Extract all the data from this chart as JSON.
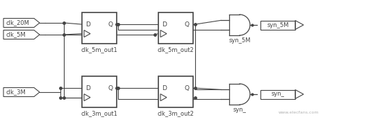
{
  "bg_color": "#ffffff",
  "line_color": "#444444",
  "font_size": 6.5,
  "top_inp1_label": "clk_20M",
  "top_inp2_label": "clk_5M",
  "bot_inp1_label": "clk_3M",
  "dff_top1_label": "clk_5m_out1",
  "dff_top2_label": "clk_5m_out2",
  "dff_bot1_label": "clk_3m_out1",
  "dff_bot2_label": "clk_3m_out2",
  "and_top_label": "syn_5M",
  "and_bot_label": "syn_",
  "out_top_label": "syn_5M",
  "out_bot_label": "syn_",
  "watermark": "www.elecfans.com"
}
